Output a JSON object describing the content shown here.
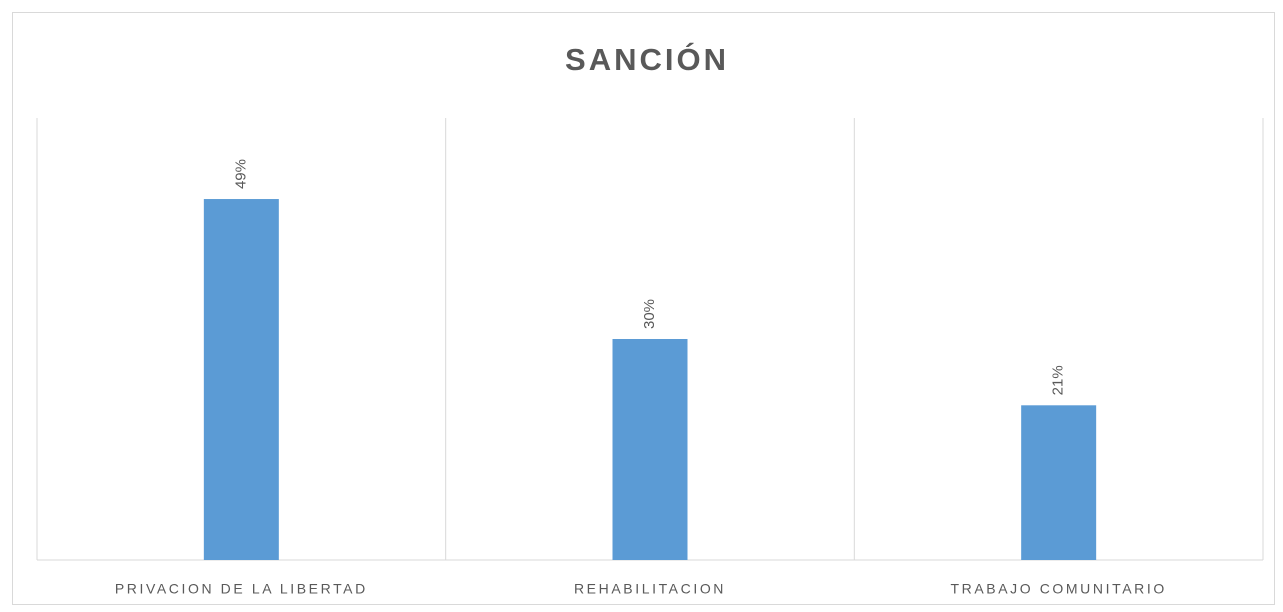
{
  "chart_data": {
    "type": "bar",
    "title": "SANCIÓN",
    "categories": [
      "PRIVACION DE LA LIBERTAD",
      "REHABILITACION",
      "TRABAJO COMUNITARIO"
    ],
    "values": [
      49,
      30,
      21
    ],
    "value_labels": [
      "49%",
      "30%",
      "21%"
    ],
    "color": "#5b9bd5",
    "ylim": [
      0,
      60
    ]
  }
}
